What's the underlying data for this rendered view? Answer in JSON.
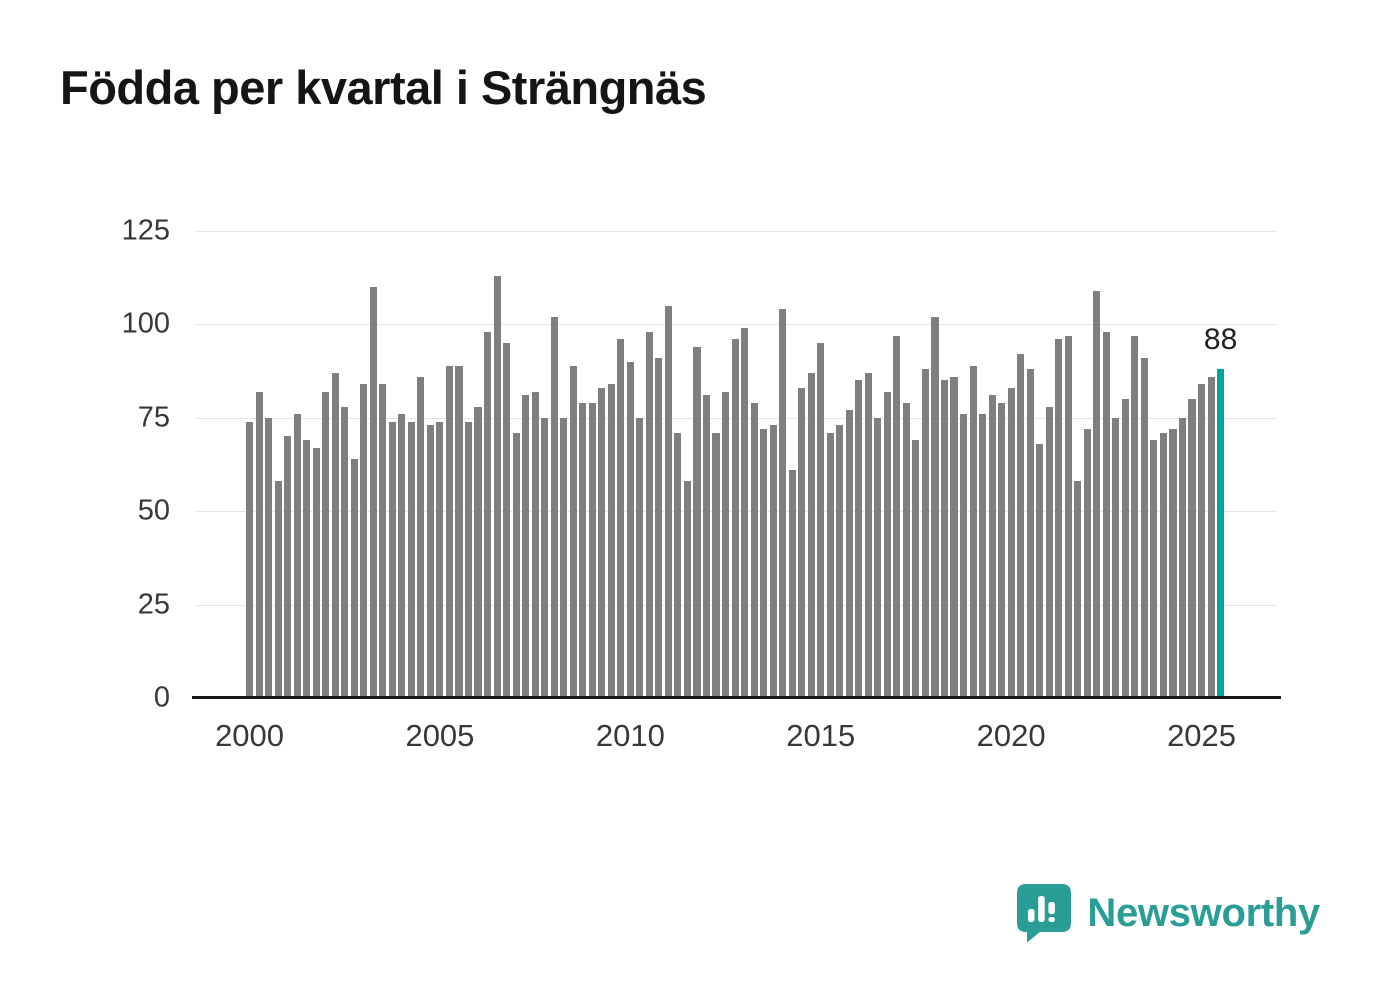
{
  "title": "Födda per kvartal i Strängnäs",
  "chart_data": {
    "type": "bar",
    "title": "Födda per kvartal i Strängnäs",
    "x_start": "2000 Q1",
    "x_end": "2025 Q3",
    "x_frequency": "quarterly",
    "values": [
      74,
      82,
      75,
      58,
      70,
      76,
      69,
      67,
      82,
      87,
      78,
      64,
      84,
      110,
      84,
      74,
      76,
      74,
      86,
      73,
      74,
      89,
      89,
      74,
      78,
      98,
      113,
      95,
      71,
      81,
      82,
      75,
      102,
      75,
      89,
      79,
      79,
      83,
      84,
      96,
      90,
      75,
      98,
      91,
      105,
      71,
      58,
      94,
      81,
      71,
      82,
      96,
      99,
      79,
      72,
      73,
      104,
      61,
      83,
      87,
      95,
      71,
      73,
      77,
      85,
      87,
      75,
      82,
      97,
      79,
      69,
      88,
      102,
      85,
      86,
      76,
      89,
      76,
      81,
      79,
      83,
      92,
      88,
      68,
      78,
      96,
      97,
      58,
      72,
      109,
      98,
      75,
      80,
      97,
      91,
      69,
      71,
      72,
      75,
      80,
      84,
      86,
      88
    ],
    "ylim": [
      0,
      125
    ],
    "yticks": [
      0,
      25,
      50,
      75,
      100,
      125
    ],
    "xtick_years": [
      2000,
      2005,
      2010,
      2015,
      2020,
      2025
    ],
    "grid": true,
    "legend": false,
    "ylabel": "",
    "xlabel": "",
    "bar_color": "#7f7f7f",
    "highlight_color": "#00a3a0",
    "highlight_position": "last",
    "highlight_value": 88,
    "highlight_label": "88"
  },
  "branding": {
    "logo_text": "Newsworthy",
    "brand_color": "#2a9d96"
  }
}
